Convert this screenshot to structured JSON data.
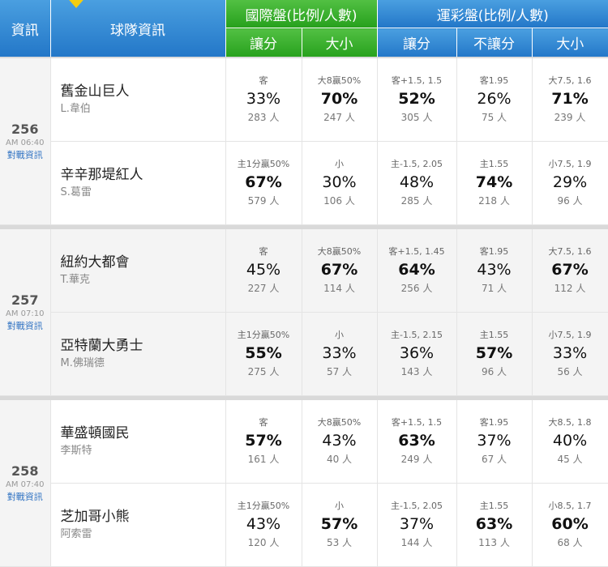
{
  "header": {
    "info": "資訊",
    "team": "球隊資訊",
    "intl": "國際盤(比例/人數)",
    "lottery": "運彩盤(比例/人數)",
    "intl_handicap": "讓分",
    "intl_size": "大小",
    "lot_handicap": "讓分",
    "lot_nohandicap": "不讓分",
    "lot_size": "大小"
  },
  "colors": {
    "blue": "#2377c8",
    "green": "#27a11d",
    "link": "#2f72c2"
  },
  "games": [
    {
      "id": "256",
      "time": "AM 06:40",
      "link": "對戰資訊",
      "teams": [
        {
          "name": "舊金山巨人",
          "pitcher": "L.韋伯",
          "cells": [
            {
              "label": "客",
              "pct": "33%",
              "count": "283 人"
            },
            {
              "label": "大8贏50%",
              "pct": "70%",
              "count": "247 人"
            },
            {
              "label": "客+1.5, 1.5",
              "pct": "52%",
              "count": "305 人"
            },
            {
              "label": "客1.95",
              "pct": "26%",
              "count": "75 人"
            },
            {
              "label": "大7.5, 1.6",
              "pct": "71%",
              "count": "239 人"
            }
          ]
        },
        {
          "name": "辛辛那堤紅人",
          "pitcher": "S.葛雷",
          "cells": [
            {
              "label": "主1分贏50%",
              "pct": "67%",
              "count": "579 人"
            },
            {
              "label": "小",
              "pct": "30%",
              "count": "106 人"
            },
            {
              "label": "主-1.5, 2.05",
              "pct": "48%",
              "count": "285 人"
            },
            {
              "label": "主1.55",
              "pct": "74%",
              "count": "218 人"
            },
            {
              "label": "小7.5, 1.9",
              "pct": "29%",
              "count": "96 人"
            }
          ]
        }
      ]
    },
    {
      "id": "257",
      "time": "AM 07:10",
      "link": "對戰資訊",
      "teams": [
        {
          "name": "紐約大都會",
          "pitcher": "T.華克",
          "cells": [
            {
              "label": "客",
              "pct": "45%",
              "count": "227 人"
            },
            {
              "label": "大8贏50%",
              "pct": "67%",
              "count": "114 人"
            },
            {
              "label": "客+1.5, 1.45",
              "pct": "64%",
              "count": "256 人"
            },
            {
              "label": "客1.95",
              "pct": "43%",
              "count": "71 人"
            },
            {
              "label": "大7.5, 1.6",
              "pct": "67%",
              "count": "112 人"
            }
          ]
        },
        {
          "name": "亞特蘭大勇士",
          "pitcher": "M.佛瑞德",
          "cells": [
            {
              "label": "主1分贏50%",
              "pct": "55%",
              "count": "275 人"
            },
            {
              "label": "小",
              "pct": "33%",
              "count": "57 人"
            },
            {
              "label": "主-1.5, 2.15",
              "pct": "36%",
              "count": "143 人"
            },
            {
              "label": "主1.55",
              "pct": "57%",
              "count": "96 人"
            },
            {
              "label": "小7.5, 1.9",
              "pct": "33%",
              "count": "56 人"
            }
          ]
        }
      ]
    },
    {
      "id": "258",
      "time": "AM 07:40",
      "link": "對戰資訊",
      "teams": [
        {
          "name": "華盛頓國民",
          "pitcher": "李斯特",
          "cells": [
            {
              "label": "客",
              "pct": "57%",
              "count": "161 人"
            },
            {
              "label": "大8贏50%",
              "pct": "43%",
              "count": "40 人"
            },
            {
              "label": "客+1.5, 1.5",
              "pct": "63%",
              "count": "249 人"
            },
            {
              "label": "客1.95",
              "pct": "37%",
              "count": "67 人"
            },
            {
              "label": "大8.5, 1.8",
              "pct": "40%",
              "count": "45 人"
            }
          ]
        },
        {
          "name": "芝加哥小熊",
          "pitcher": "阿索雷",
          "cells": [
            {
              "label": "主1分贏50%",
              "pct": "43%",
              "count": "120 人"
            },
            {
              "label": "小",
              "pct": "57%",
              "count": "53 人"
            },
            {
              "label": "主-1.5, 2.05",
              "pct": "37%",
              "count": "144 人"
            },
            {
              "label": "主1.55",
              "pct": "63%",
              "count": "113 人"
            },
            {
              "label": "小8.5, 1.7",
              "pct": "60%",
              "count": "68 人"
            }
          ]
        }
      ]
    }
  ]
}
